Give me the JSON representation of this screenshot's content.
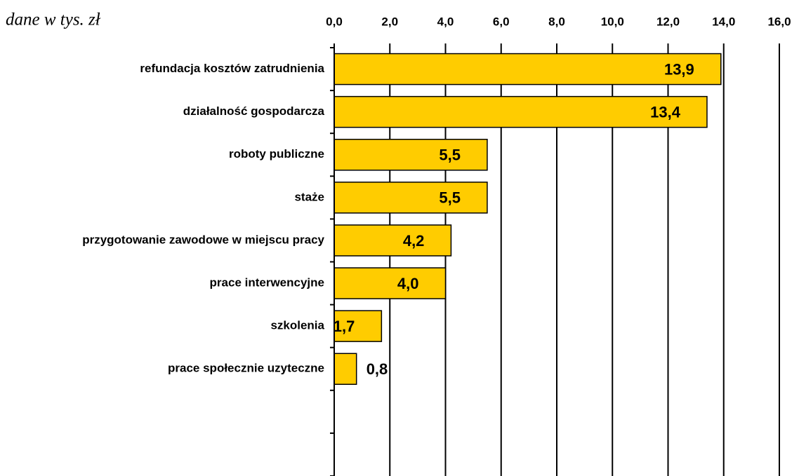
{
  "chart_data": {
    "type": "hbar",
    "subtitle": "dane w tys. zł",
    "categories": [
      "refundacja kosztów zatrudnienia",
      "działalność gospodarcza",
      "roboty publiczne",
      "staże",
      "przygotowanie zawodowe w miejscu pracy",
      "prace interwencyjne",
      "szkolenia",
      "prace społecznie uzyteczne",
      null,
      null
    ],
    "values": [
      13.9,
      13.4,
      5.5,
      5.5,
      4.2,
      4.0,
      1.7,
      0.8,
      null,
      null
    ],
    "value_labels": [
      "13,9",
      "13,4",
      "5,5",
      "5,5",
      "4,2",
      "4,0",
      "1,7",
      "0,8",
      null,
      null
    ],
    "color": "#ffcc00",
    "xlim": [
      0,
      16
    ],
    "xticks": [
      {
        "value": 0,
        "label": "0,0"
      },
      {
        "value": 2,
        "label": "2,0"
      },
      {
        "value": 4,
        "label": "4,0"
      },
      {
        "value": 6,
        "label": "6,0"
      },
      {
        "value": 8,
        "label": "8,0"
      },
      {
        "value": 10,
        "label": "10,0"
      },
      {
        "value": 12,
        "label": "12,0"
      },
      {
        "value": 14,
        "label": "14,0"
      },
      {
        "value": 16,
        "label": "16,0"
      }
    ],
    "grid": true
  }
}
